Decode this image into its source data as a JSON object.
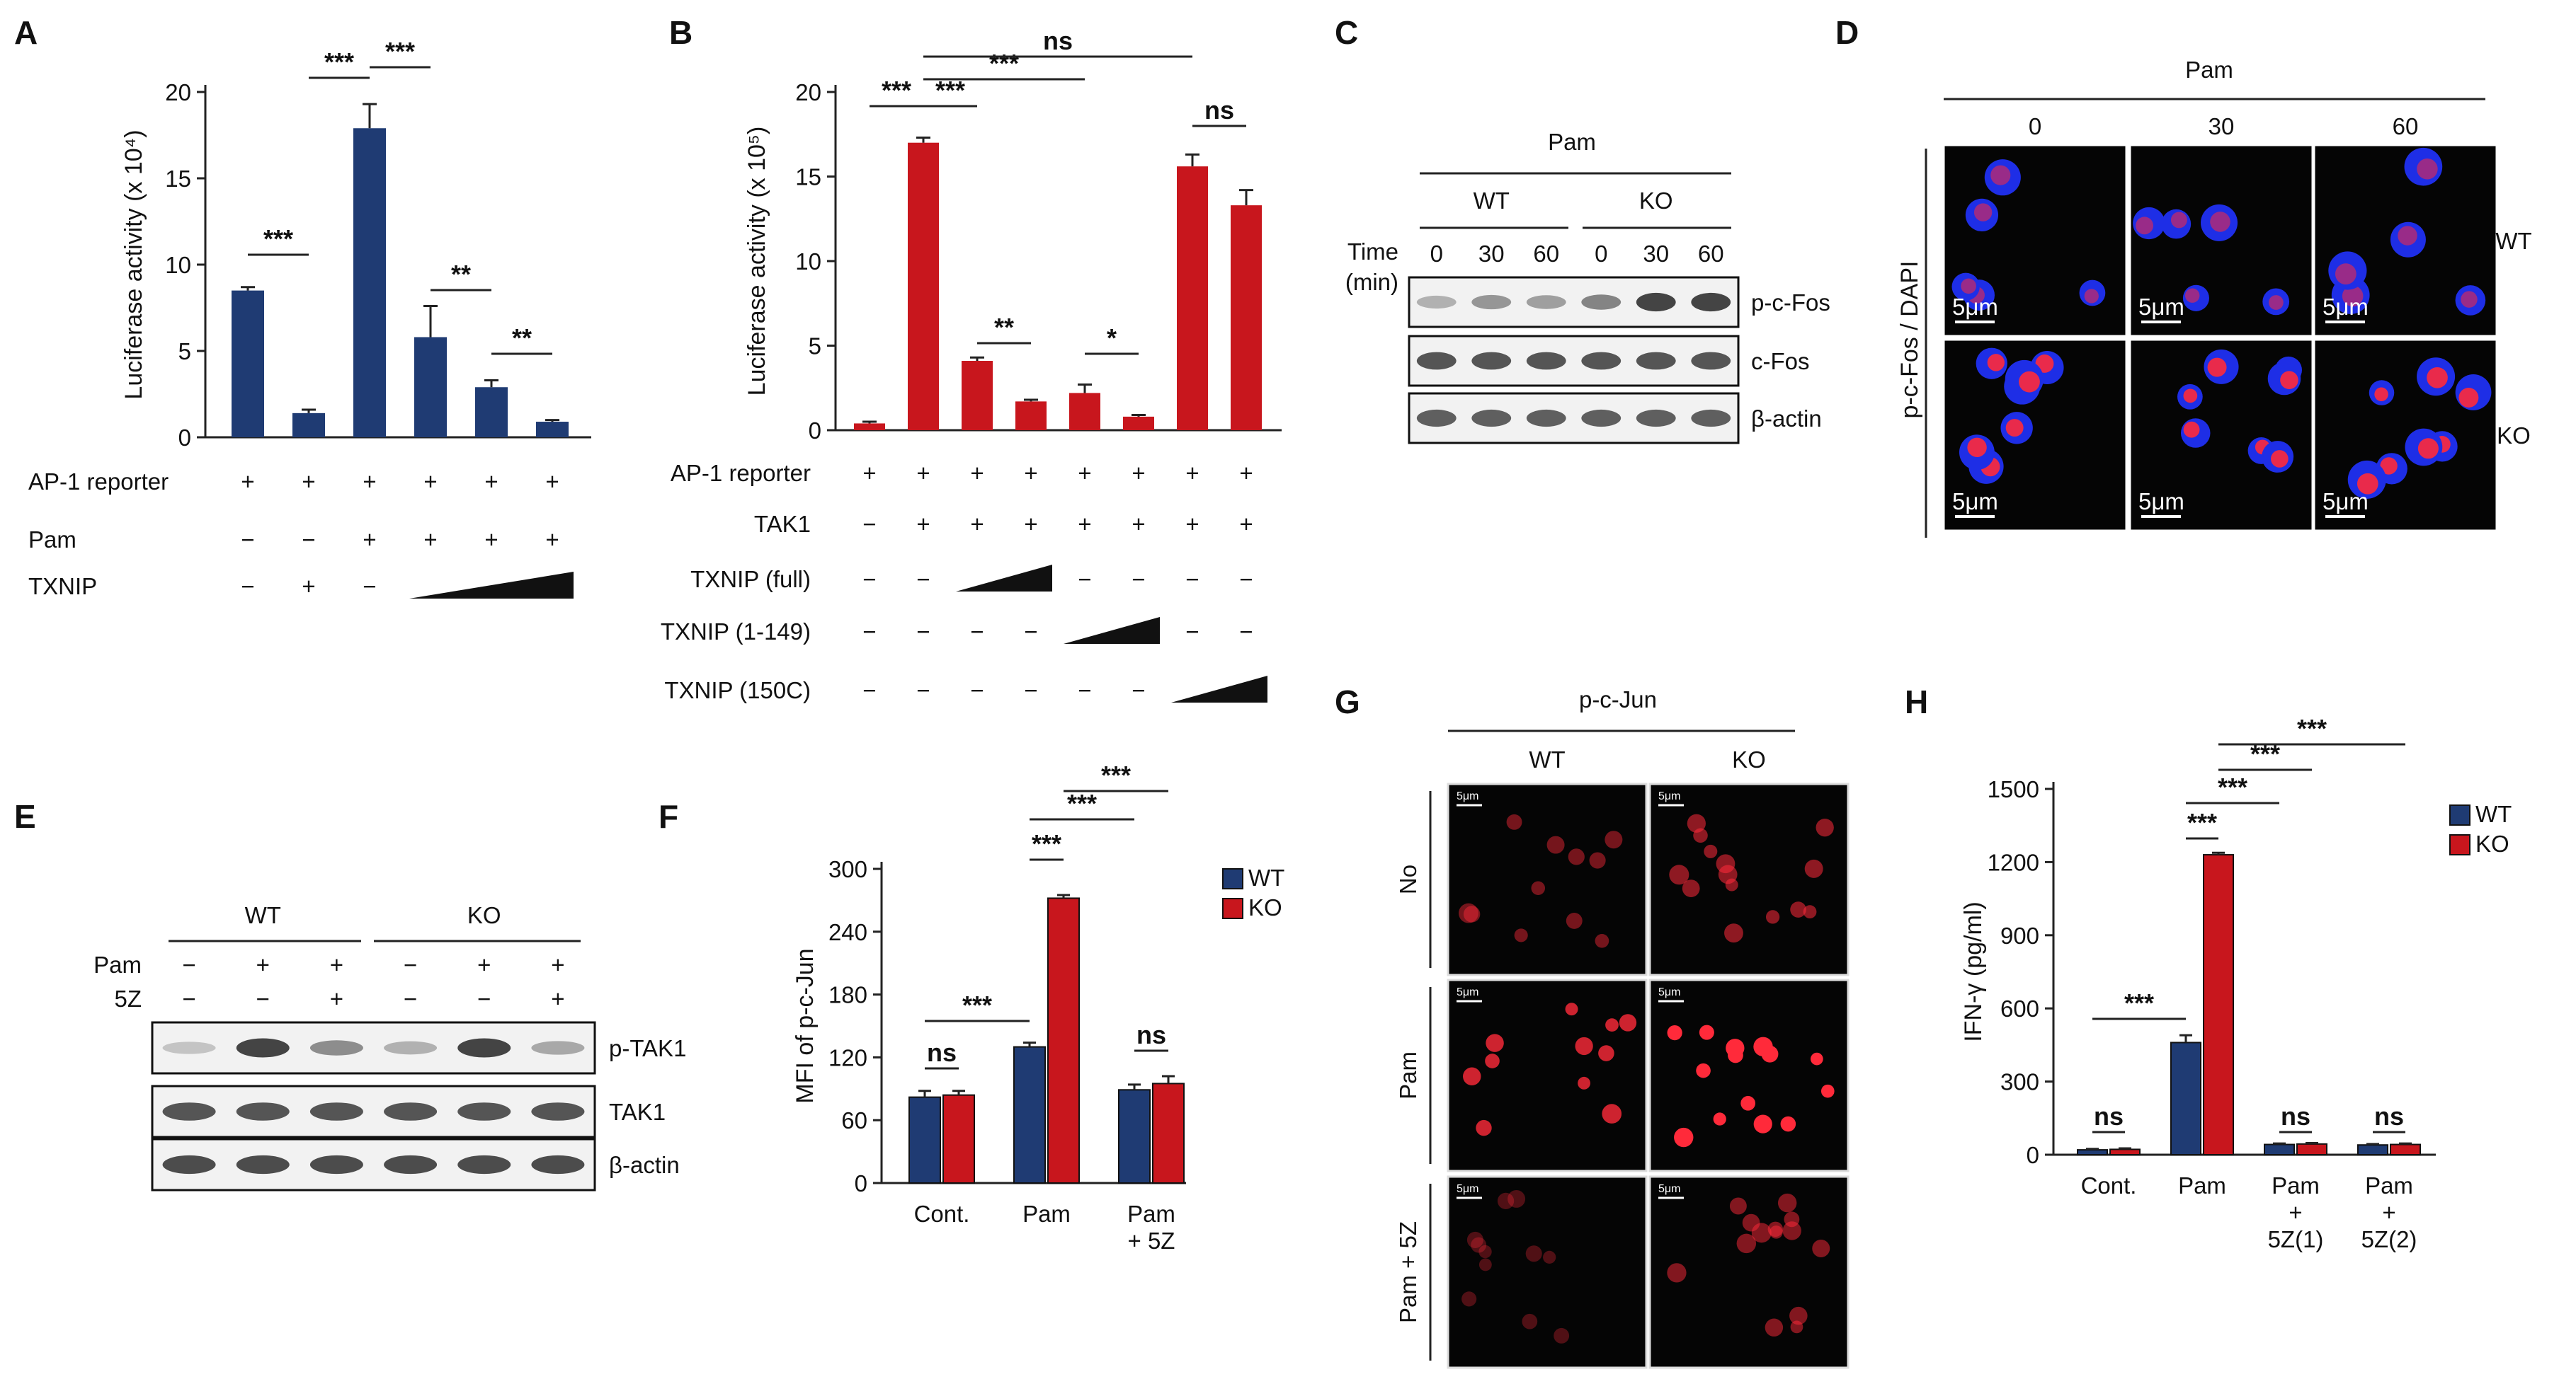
{
  "panel_labels": [
    "A",
    "B",
    "C",
    "D",
    "E",
    "F",
    "G",
    "H"
  ],
  "colors": {
    "wt": "#1f3b73",
    "ko": "#c8161d",
    "axis": "#222222",
    "blot_bg": "#f2f2f2",
    "band": "#3a3a3a",
    "micro_bg": "#050505",
    "dapi": "#1e2ee6",
    "red_signal": "#ff2a3a"
  },
  "chart_data": [
    {
      "id": "A",
      "type": "bar",
      "ylabel": "Luciferase activity (x 10⁴)",
      "ylim": [
        0,
        20
      ],
      "yticks": [
        "0",
        "5",
        "10",
        "15",
        "20"
      ],
      "values": [
        8.5,
        1.4,
        17.9,
        5.8,
        2.9,
        0.9
      ],
      "errors": [
        0.2,
        0.2,
        1.4,
        1.8,
        0.4,
        0.1
      ],
      "series_color": "wt",
      "conditions": [
        {
          "label": "AP-1 reporter",
          "marks": [
            "+",
            "+",
            "+",
            "+",
            "+",
            "+"
          ]
        },
        {
          "label": "Pam",
          "marks": [
            "−",
            "−",
            "+",
            "+",
            "+",
            "+"
          ]
        },
        {
          "label": "TXNIP",
          "marks": [
            "−",
            "+",
            "−",
            "",
            "",
            ""
          ],
          "wedge": [
            3,
            5
          ]
        }
      ],
      "annotations": [
        {
          "from": 0,
          "to": 1,
          "text": "***"
        },
        {
          "from": 1,
          "to": 2,
          "text": "***"
        },
        {
          "from": 2,
          "to": 3,
          "text": "***"
        },
        {
          "from": 3,
          "to": 4,
          "text": "**"
        },
        {
          "from": 4,
          "to": 5,
          "text": "**"
        }
      ]
    },
    {
      "id": "B",
      "type": "bar",
      "ylabel": "Luciferase activity (x 10⁵)",
      "ylim": [
        0,
        20
      ],
      "yticks": [
        "0",
        "5",
        "10",
        "15",
        "20"
      ],
      "values": [
        0.4,
        17.0,
        4.1,
        1.7,
        2.2,
        0.8,
        15.6,
        13.3
      ],
      "errors": [
        0.1,
        0.3,
        0.2,
        0.1,
        0.5,
        0.1,
        0.7,
        0.9
      ],
      "series_color": "ko",
      "conditions": [
        {
          "label": "AP-1 reporter",
          "marks": [
            "+",
            "+",
            "+",
            "+",
            "+",
            "+",
            "+",
            "+"
          ]
        },
        {
          "label": "TAK1",
          "marks": [
            "−",
            "+",
            "+",
            "+",
            "+",
            "+",
            "+",
            "+"
          ]
        },
        {
          "label": "TXNIP (full)",
          "marks": [
            "−",
            "−",
            "",
            "",
            "−",
            "−",
            "−",
            "−"
          ],
          "wedge": [
            2,
            3
          ]
        },
        {
          "label": "TXNIP (1-149)",
          "marks": [
            "−",
            "−",
            "−",
            "−",
            "",
            "",
            "−",
            "−"
          ],
          "wedge": [
            4,
            5
          ]
        },
        {
          "label": "TXNIP (150C)",
          "marks": [
            "−",
            "−",
            "−",
            "−",
            "−",
            "−",
            "",
            ""
          ],
          "wedge": [
            6,
            7
          ]
        }
      ],
      "annotations": [
        {
          "from": 0,
          "to": 1,
          "text": "***"
        },
        {
          "from": 1,
          "to": 2,
          "text": "***"
        },
        {
          "from": 1,
          "to": 4,
          "text": "***"
        },
        {
          "from": 1,
          "to": 6,
          "text": "ns"
        },
        {
          "from": 2,
          "to": 3,
          "text": "**"
        },
        {
          "from": 4,
          "to": 5,
          "text": "*"
        },
        {
          "from": 6,
          "to": 7,
          "text": "ns"
        }
      ]
    },
    {
      "id": "F",
      "type": "bar",
      "ylabel": "MFI of p-c-Jun",
      "ylim": [
        0,
        300
      ],
      "yticks": [
        "0",
        "60",
        "120",
        "180",
        "240",
        "300"
      ],
      "categories": [
        "Cont.",
        "Pam",
        "Pam\n+ 5Z"
      ],
      "series": [
        {
          "name": "WT",
          "values": [
            82,
            130,
            89
          ],
          "errors": [
            6,
            4,
            5
          ]
        },
        {
          "name": "KO",
          "values": [
            84,
            272,
            95
          ],
          "errors": [
            4,
            3,
            7
          ]
        }
      ],
      "legend": "top-right",
      "annotations": [
        {
          "from": [
            0,
            0
          ],
          "to": [
            0,
            1
          ],
          "text": "ns"
        },
        {
          "from": [
            0,
            0
          ],
          "to": [
            1,
            0
          ],
          "text": "***"
        },
        {
          "from": [
            1,
            0
          ],
          "to": [
            1,
            1
          ],
          "text": "***"
        },
        {
          "from": [
            1,
            0
          ],
          "to": [
            2,
            0
          ],
          "text": "***"
        },
        {
          "from": [
            1,
            1
          ],
          "to": [
            2,
            1
          ],
          "text": "***"
        },
        {
          "from": [
            2,
            0
          ],
          "to": [
            2,
            1
          ],
          "text": "ns"
        }
      ]
    },
    {
      "id": "H",
      "type": "bar",
      "ylabel": "IFN-γ (pg/ml)",
      "ylim": [
        0,
        1500
      ],
      "yticks": [
        "0",
        "300",
        "600",
        "900",
        "1200",
        "1500"
      ],
      "categories": [
        "Cont.",
        "Pam",
        "Pam\n+\n5Z(1)",
        "Pam\n+\n5Z(2)"
      ],
      "series": [
        {
          "name": "WT",
          "values": [
            20,
            460,
            42,
            40
          ],
          "errors": [
            4,
            30,
            4,
            4
          ]
        },
        {
          "name": "KO",
          "values": [
            22,
            1230,
            44,
            42
          ],
          "errors": [
            4,
            8,
            4,
            4
          ]
        }
      ],
      "legend": "top-right",
      "annotations": [
        {
          "from": [
            0,
            0
          ],
          "to": [
            0,
            1
          ],
          "text": "ns"
        },
        {
          "from": [
            0,
            0
          ],
          "to": [
            1,
            0
          ],
          "text": "***"
        },
        {
          "from": [
            1,
            0
          ],
          "to": [
            1,
            1
          ],
          "text": "***"
        },
        {
          "from": [
            1,
            0
          ],
          "to": [
            2,
            0
          ],
          "text": "***"
        },
        {
          "from": [
            1,
            1
          ],
          "to": [
            2,
            1
          ],
          "text": "***"
        },
        {
          "from": [
            1,
            1
          ],
          "to": [
            3,
            1
          ],
          "text": "***"
        },
        {
          "from": [
            2,
            0
          ],
          "to": [
            2,
            1
          ],
          "text": "ns"
        },
        {
          "from": [
            3,
            0
          ],
          "to": [
            3,
            1
          ],
          "text": "ns"
        }
      ]
    }
  ],
  "panel_C": {
    "treatment": "Pam",
    "groups": [
      "WT",
      "KO"
    ],
    "time_label": [
      "Time",
      "(min)"
    ],
    "times": [
      "0",
      "30",
      "60",
      "0",
      "30",
      "60"
    ],
    "blots": [
      {
        "name": "p-c-Fos",
        "intensity": [
          0.35,
          0.5,
          0.45,
          0.6,
          0.95,
          0.95
        ]
      },
      {
        "name": "c-Fos",
        "intensity": [
          0.85,
          0.85,
          0.85,
          0.85,
          0.85,
          0.85
        ]
      },
      {
        "name": "β-actin",
        "intensity": [
          0.8,
          0.8,
          0.8,
          0.8,
          0.8,
          0.8
        ]
      }
    ]
  },
  "panel_D": {
    "treatment": "Pam",
    "times": [
      "0",
      "30",
      "60"
    ],
    "rows": [
      "WT",
      "KO"
    ],
    "side_label": "p-c-Fos / DAPI",
    "scale_bar": "5μm"
  },
  "panel_E": {
    "groups": [
      "WT",
      "KO"
    ],
    "rows": [
      {
        "label": "Pam",
        "marks": [
          "−",
          "+",
          "+",
          "−",
          "+",
          "+"
        ]
      },
      {
        "label": "5Z",
        "marks": [
          "−",
          "−",
          "+",
          "−",
          "−",
          "+"
        ]
      }
    ],
    "blots": [
      {
        "name": "p-TAK1",
        "intensity": [
          0.25,
          0.95,
          0.55,
          0.35,
          0.95,
          0.4
        ]
      },
      {
        "name": "TAK1",
        "intensity": [
          0.85,
          0.85,
          0.85,
          0.85,
          0.85,
          0.85
        ]
      },
      {
        "name": "β-actin",
        "intensity": [
          0.9,
          0.9,
          0.9,
          0.9,
          0.9,
          0.9
        ]
      }
    ]
  },
  "panel_G": {
    "marker": "p-c-Jun",
    "columns": [
      "WT",
      "KO"
    ],
    "rows": [
      "No",
      "Pam",
      "Pam + 5Z"
    ],
    "scale_bar": "5μm",
    "brightness": [
      [
        0.45,
        0.55
      ],
      [
        0.8,
        1.0
      ],
      [
        0.3,
        0.5
      ]
    ]
  }
}
